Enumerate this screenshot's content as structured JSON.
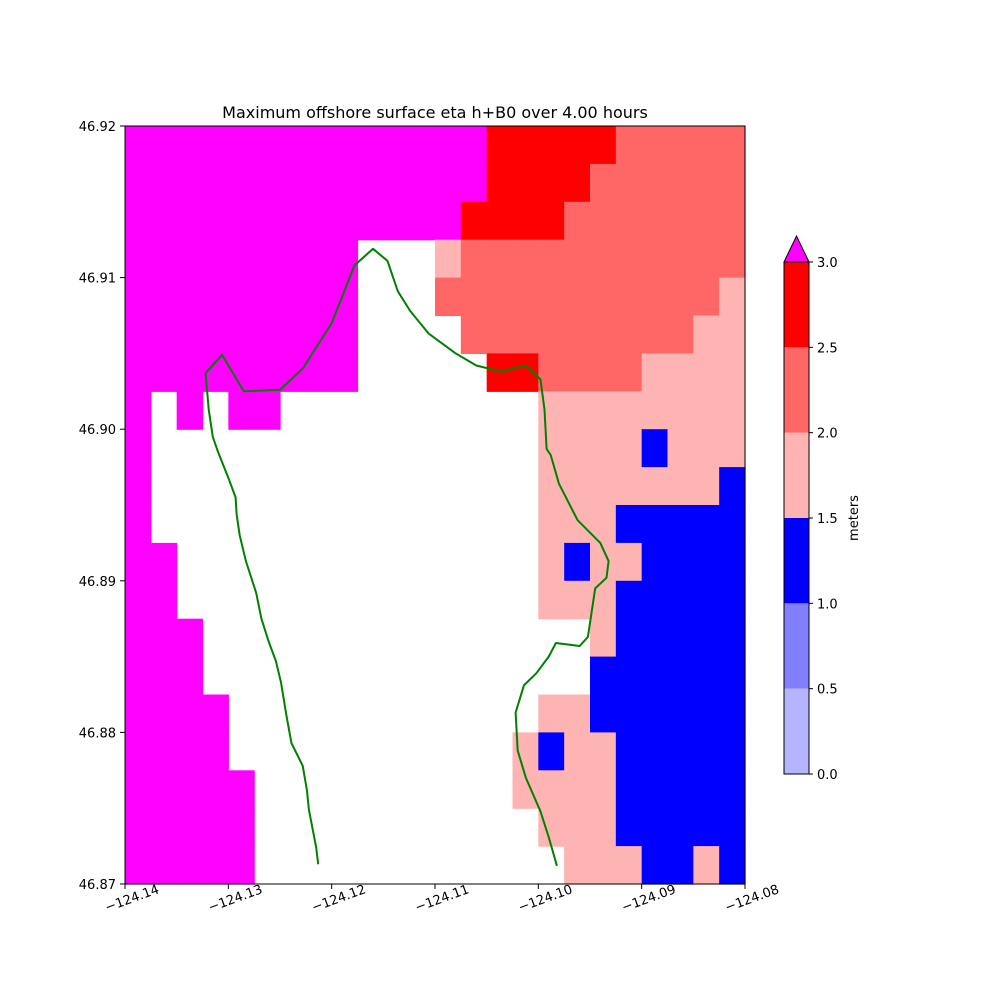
{
  "chart_data": {
    "type": "heatmap",
    "title": "Maximum offshore surface eta h+B0 over 4.00 hours",
    "xlim": [
      -124.14,
      -124.08
    ],
    "ylim": [
      46.87,
      46.92
    ],
    "x_ticks": [
      -124.14,
      -124.13,
      -124.12,
      -124.11,
      -124.1,
      -124.09,
      -124.08
    ],
    "x_tick_labels": [
      "−124.14",
      "−124.13",
      "−124.12",
      "−124.11",
      "−124.10",
      "−124.09",
      "−124.08"
    ],
    "y_ticks": [
      46.87,
      46.88,
      46.89,
      46.9,
      46.91,
      46.92
    ],
    "y_tick_labels": [
      "46.87",
      "46.88",
      "46.89",
      "46.90",
      "46.91",
      "46.92"
    ],
    "grid": false,
    "grid_columns": 24,
    "grid_rows": 20,
    "cell_size_deg": [
      0.0025,
      0.0025
    ],
    "origin": "top-left",
    "level_key": "0 = land/no data, 2 = 1.0-1.5 m, 3 = 1.5-2.0 m, 4 = 2.0-2.5 m, 5 = 2.5-3.0 m, 6 = >3.0 m",
    "levels": [
      "666666666666665555544444",
      "666666666666665555444444",
      "666666666666655554444444",
      "666666666000344444444444",
      "666666666000444444444443",
      "666666666000044444444433",
      "666666666000005544443333",
      "606066000000000033333333",
      "600000000000000033332333",
      "600000000000000033333332",
      "600000000000000033322222",
      "660000000000000032332222",
      "660000000000000033322222",
      "666000000000000000322222",
      "666000000000000000222222",
      "666600000000000033222222",
      "666600000000000323322222",
      "666660000000000333322222",
      "666660000000000033322222",
      "666660000000000003332232"
    ],
    "coastline": [
      [
        -124.1322,
        46.9037
      ],
      [
        -124.1306,
        46.9049
      ],
      [
        -124.1285,
        46.9025
      ],
      [
        -124.125,
        46.9026
      ],
      [
        -124.1228,
        46.904
      ],
      [
        -124.12,
        46.907
      ],
      [
        -124.1186,
        46.9094
      ],
      [
        -124.1178,
        46.9108
      ],
      [
        -124.116,
        46.9119
      ],
      [
        -124.1146,
        46.9111
      ],
      [
        -124.1136,
        46.9091
      ],
      [
        -124.1124,
        46.9078
      ],
      [
        -124.1106,
        46.9063
      ],
      [
        -124.108,
        46.905
      ],
      [
        -124.106,
        46.9042
      ],
      [
        -124.1036,
        46.9038
      ],
      [
        -124.1012,
        46.9042
      ],
      [
        -124.0998,
        46.9033
      ],
      [
        -124.0994,
        46.9013
      ],
      [
        -124.0992,
        46.8987
      ],
      [
        -124.0988,
        46.8983
      ],
      [
        -124.098,
        46.8964
      ],
      [
        -124.0962,
        46.894
      ],
      [
        -124.094,
        46.8925
      ],
      [
        -124.0932,
        46.8913
      ],
      [
        -124.0934,
        46.8902
      ],
      [
        -124.0945,
        46.8895
      ],
      [
        -124.0952,
        46.8863
      ],
      [
        -124.096,
        46.8857
      ],
      [
        -124.0983,
        46.8859
      ],
      [
        -124.099,
        46.885
      ],
      [
        -124.1002,
        46.8839
      ],
      [
        -124.1014,
        46.8831
      ],
      [
        -124.1022,
        46.8813
      ],
      [
        -124.102,
        46.8788
      ],
      [
        -124.1012,
        46.877
      ],
      [
        -124.0998,
        46.8748
      ],
      [
        -124.099,
        46.8731
      ],
      [
        -124.0982,
        46.8712
      ]
    ],
    "coastline_west": [
      [
        -124.1322,
        46.9037
      ],
      [
        -124.1319,
        46.9013
      ],
      [
        -124.1315,
        46.8995
      ],
      [
        -124.131,
        46.8985
      ],
      [
        -124.13,
        46.8968
      ],
      [
        -124.1293,
        46.8955
      ],
      [
        -124.1292,
        46.8944
      ],
      [
        -124.1289,
        46.893
      ],
      [
        -124.1283,
        46.8913
      ],
      [
        -124.1273,
        46.8892
      ],
      [
        -124.1268,
        46.8875
      ],
      [
        -124.1261,
        46.886
      ],
      [
        -124.1254,
        46.8847
      ],
      [
        -124.1249,
        46.8833
      ],
      [
        -124.1244,
        46.8812
      ],
      [
        -124.1239,
        46.8793
      ],
      [
        -124.1228,
        46.8778
      ],
      [
        -124.1224,
        46.8762
      ],
      [
        -124.1222,
        46.8749
      ],
      [
        -124.1215,
        46.8724
      ],
      [
        -124.1213,
        46.8713
      ]
    ],
    "colorbar": {
      "label": "meters",
      "ticks": [
        "0.0",
        "0.5",
        "1.0",
        "1.5",
        "2.0",
        "2.5",
        "3.0"
      ],
      "bins": [
        {
          "range": [
            0.0,
            0.5
          ],
          "color": "#b4b4ff"
        },
        {
          "range": [
            0.5,
            1.0
          ],
          "color": "#8080ff"
        },
        {
          "range": [
            1.0,
            1.5
          ],
          "color": "#0000ff"
        },
        {
          "range": [
            1.5,
            2.0
          ],
          "color": "#ffb4b4"
        },
        {
          "range": [
            2.0,
            2.5
          ],
          "color": "#ff6666"
        },
        {
          "range": [
            2.5,
            3.0
          ],
          "color": "#ff0000"
        }
      ],
      "extend_max_color": "#ff00ff"
    },
    "land_color": "#ffffff",
    "coastline_color": "#008000"
  }
}
